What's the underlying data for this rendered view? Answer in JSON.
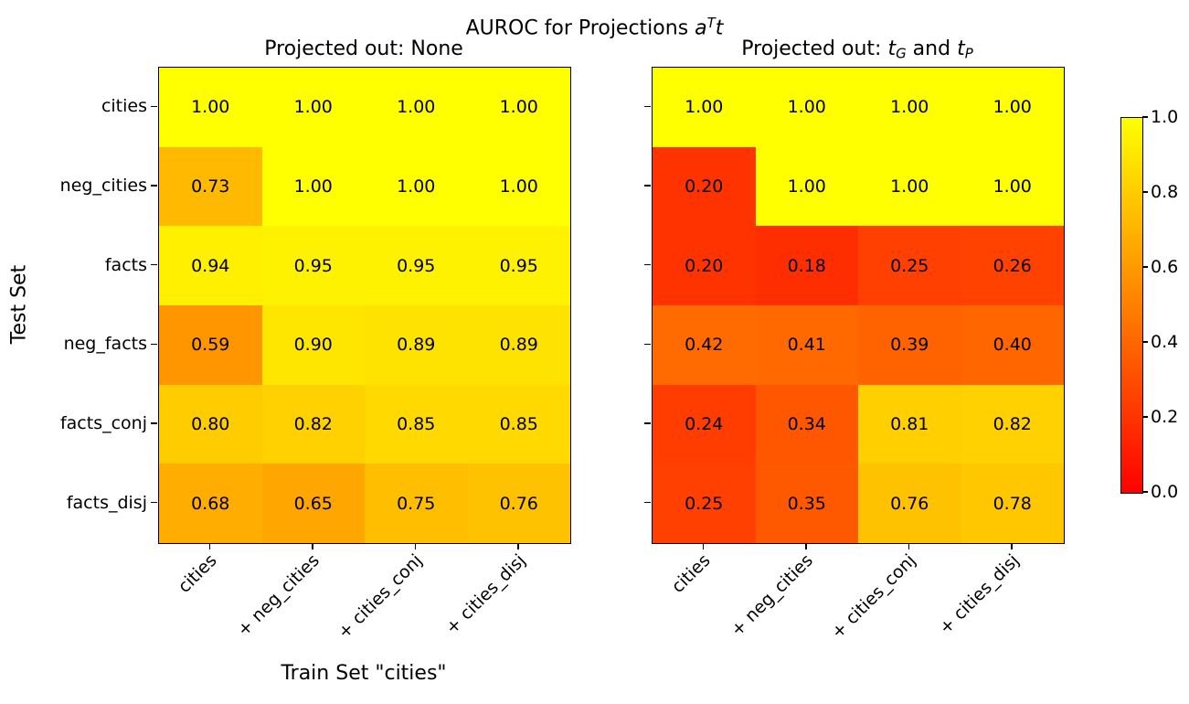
{
  "figure": {
    "suptitle": {
      "prefix": "AUROC for Projections ",
      "math_base": "a",
      "math_sup": "T",
      "math_end": "t"
    },
    "xlabel": "Train Set \"cities\"",
    "ylabel": "Test Set"
  },
  "colorbar": {
    "colormap": "autumn",
    "min_color": "#ff0000",
    "max_color": "#ffff00",
    "tick_labels": [
      "0.0",
      "0.2",
      "0.4",
      "0.6",
      "0.8",
      "1.0"
    ]
  },
  "chart_data": [
    {
      "type": "heatmap",
      "title": "Projected out: None",
      "rows": [
        "cities",
        "neg_cities",
        "facts",
        "neg_facts",
        "facts_conj",
        "facts_disj"
      ],
      "columns": [
        "cities",
        "+ neg_cities",
        "+ cities_conj",
        "+ cities_disj"
      ],
      "values": [
        [
          1.0,
          1.0,
          1.0,
          1.0
        ],
        [
          0.73,
          1.0,
          1.0,
          1.0
        ],
        [
          0.94,
          0.95,
          0.95,
          0.95
        ],
        [
          0.59,
          0.9,
          0.89,
          0.89
        ],
        [
          0.8,
          0.82,
          0.85,
          0.85
        ],
        [
          0.68,
          0.65,
          0.75,
          0.76
        ]
      ],
      "vmin": 0,
      "vmax": 1,
      "colormap": "autumn"
    },
    {
      "type": "heatmap",
      "title": "Projected out: tG and tP",
      "title_parts": {
        "prefix": "Projected out: ",
        "t1": "t",
        "sub1": "G",
        "mid": " and ",
        "t2": "t",
        "sub2": "P"
      },
      "rows": [
        "cities",
        "neg_cities",
        "facts",
        "neg_facts",
        "facts_conj",
        "facts_disj"
      ],
      "columns": [
        "cities",
        "+ neg_cities",
        "+ cities_conj",
        "+ cities_disj"
      ],
      "values": [
        [
          1.0,
          1.0,
          1.0,
          1.0
        ],
        [
          0.2,
          1.0,
          1.0,
          1.0
        ],
        [
          0.2,
          0.18,
          0.25,
          0.26
        ],
        [
          0.42,
          0.41,
          0.39,
          0.4
        ],
        [
          0.24,
          0.34,
          0.81,
          0.82
        ],
        [
          0.25,
          0.35,
          0.76,
          0.78
        ]
      ],
      "vmin": 0,
      "vmax": 1,
      "colormap": "autumn"
    }
  ]
}
